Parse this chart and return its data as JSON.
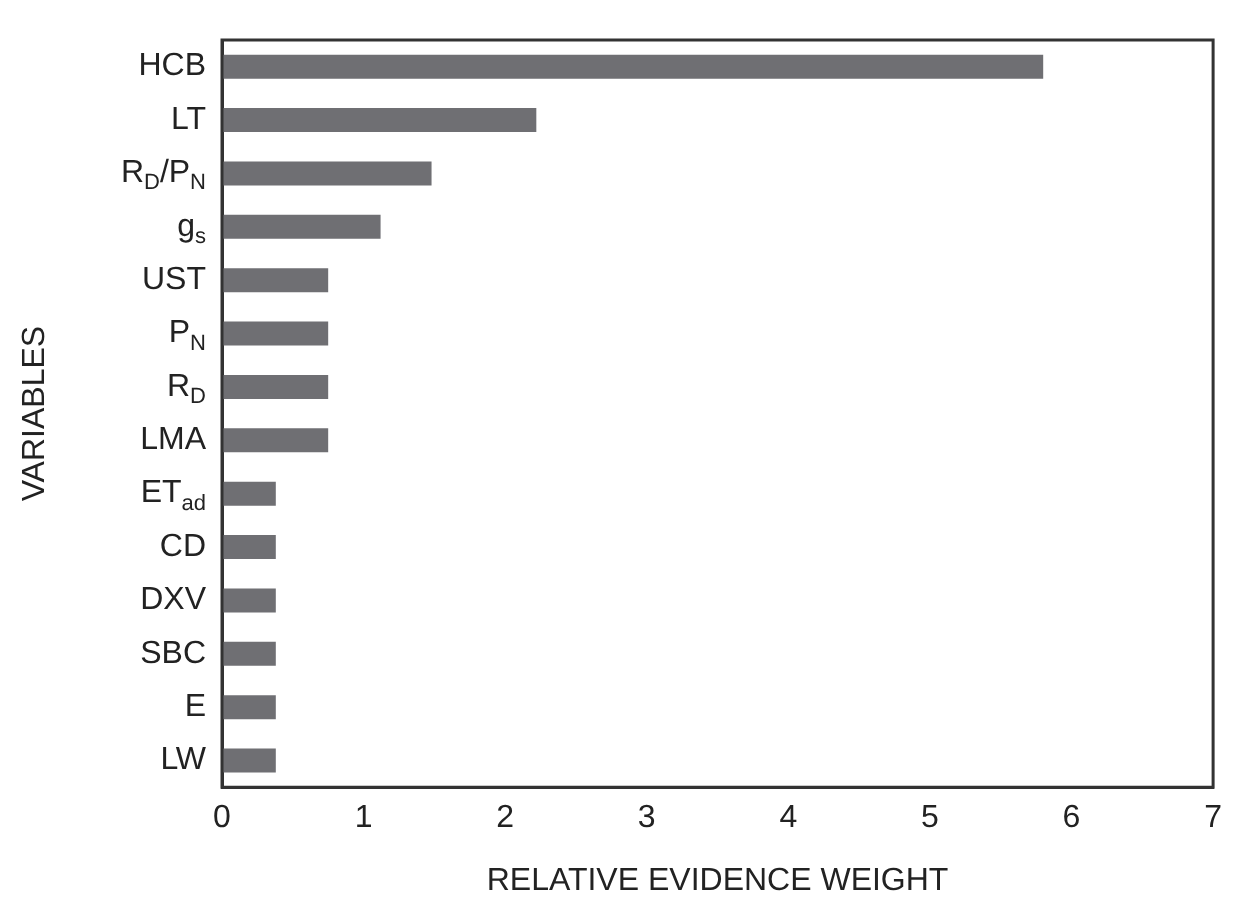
{
  "chart_data": {
    "type": "bar",
    "orientation": "horizontal",
    "xlabel": "RELATIVE EVIDENCE WEIGHT",
    "ylabel": "VARIABLES",
    "categories": [
      "HCB",
      "LT",
      "R$_{D}$/P$_{N}$",
      "g$_{s}$",
      "UST",
      "P$_{N}$",
      "R$_{D}$",
      "LMA",
      "ET$_{ad}$",
      "CD",
      "DXV",
      "SBC",
      "E",
      "LW"
    ],
    "values": [
      5.8,
      2.22,
      1.48,
      1.12,
      0.75,
      0.75,
      0.75,
      0.75,
      0.38,
      0.38,
      0.38,
      0.38,
      0.38,
      0.38
    ],
    "color": "#6f6f73",
    "xlim": [
      0,
      7
    ],
    "xticks": [
      0,
      1,
      2,
      3,
      4,
      5,
      6,
      7
    ],
    "grid": false,
    "legend": false
  }
}
